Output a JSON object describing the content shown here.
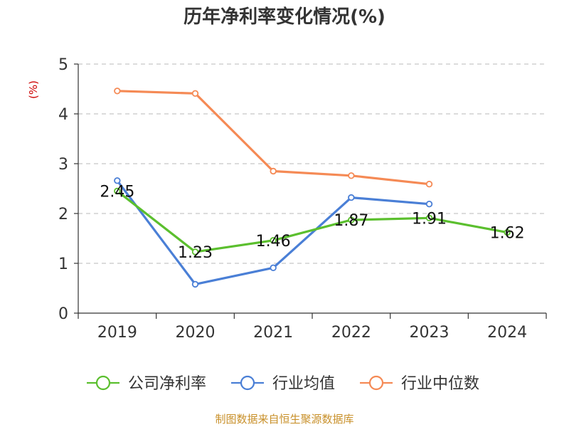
{
  "chart_data": {
    "type": "line",
    "title": "历年净利率变化情况(%)",
    "ylabel": "(%)",
    "xlabel": "",
    "categories": [
      "2019",
      "2020",
      "2021",
      "2022",
      "2023",
      "2024"
    ],
    "ylim": [
      0,
      5
    ],
    "yticks": [
      0,
      1,
      2,
      3,
      4,
      5
    ],
    "grid": true,
    "legend_position": "bottom",
    "series": [
      {
        "name": "公司净利率",
        "color": "#5bbf2e",
        "values": [
          2.45,
          1.23,
          1.46,
          1.87,
          1.91,
          1.62
        ],
        "labels": [
          "2.45",
          "1.23",
          "1.46",
          "1.87",
          "1.91",
          "1.62"
        ]
      },
      {
        "name": "行业均值",
        "color": "#4a7fd6",
        "values": [
          2.66,
          0.58,
          0.91,
          2.32,
          2.19,
          null
        ],
        "labels": []
      },
      {
        "name": "行业中位数",
        "color": "#f58a55",
        "values": [
          4.46,
          4.41,
          2.85,
          2.76,
          2.59,
          null
        ],
        "labels": []
      }
    ]
  },
  "source_text": "制图数据来自恒生聚源数据库"
}
